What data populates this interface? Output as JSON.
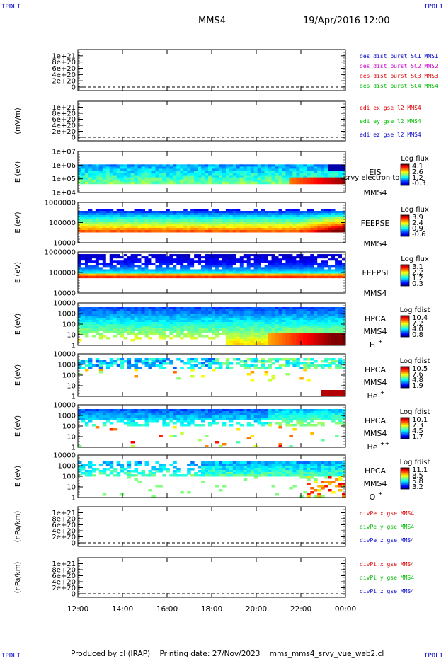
{
  "header": {
    "corner_label": "IPDLI",
    "spacecraft": "MMS4",
    "datetime": "19/Apr/2016 12:00"
  },
  "footer": {
    "produced_by": "Produced by cl (IRAP)",
    "printing_date": "Printing date: 27/Nov/2023",
    "script_name": "mms_mms4_srvy_vue_web2.cl"
  },
  "colors": {
    "mms1": "#0000cc",
    "mms2": "#cc00cc",
    "mms3": "#dd0000",
    "mms4": "#00bb00",
    "x": "#dd0000",
    "y": "#00bb00",
    "z": "#0000cc"
  },
  "chart_data": [
    {
      "type": "line",
      "panel": "des-dist",
      "y_ticks": [
        "1e+21",
        "8e+20",
        "6e+20",
        "4e+20",
        "2e+20",
        "0"
      ],
      "ylim": [
        0,
        1.2e+21
      ],
      "ylabel": "",
      "series": [
        {
          "name": "des dist burst SC1 MMS1",
          "color": "#0000cc"
        },
        {
          "name": "des dist burst SC2 MMS2",
          "color": "#cc00cc"
        },
        {
          "name": "des dist burst SC3 MMS3",
          "color": "#dd0000"
        },
        {
          "name": "des dist burst SC4 MMS4",
          "color": "#00bb00"
        }
      ],
      "zero_line": "dashed"
    },
    {
      "type": "line",
      "panel": "edi-e",
      "y_ticks": [
        "1e+21",
        "8e+20",
        "6e+20",
        "4e+20",
        "2e+20",
        "0"
      ],
      "ylim": [
        0,
        1.2e+21
      ],
      "ylabel": "(mV/m)",
      "series": [
        {
          "name": "edi ex gse l2 MMS4",
          "color": "#dd0000"
        },
        {
          "name": "edi ey gse l2 MMS4",
          "color": "#00bb00"
        },
        {
          "name": "edi ez gse l2 MMS4",
          "color": "#0000cc"
        }
      ],
      "zero_line": "dashed"
    },
    {
      "type": "heatmap",
      "panel": "eis",
      "y_ticks": [
        "1e+07",
        "1e+06",
        "1e+05",
        "1e+04"
      ],
      "ylabel": "E (eV)",
      "instrument": "EIS",
      "overlay_text": "srvy electron to",
      "sc": "MMS4",
      "cbar_title": "Log flux",
      "cbar_ticks": [
        "4.1",
        "2.6",
        "1.2",
        "-0.3"
      ]
    },
    {
      "type": "heatmap",
      "panel": "feeps-e",
      "y_ticks": [
        "1000000",
        "100000",
        "10000"
      ],
      "ylabel": "E (eV)",
      "instrument": "FEEPSE",
      "sc": "MMS4",
      "cbar_title": "Log flux",
      "cbar_ticks": [
        "3.9",
        "2.4",
        "0.9",
        "-0.6"
      ]
    },
    {
      "type": "heatmap",
      "panel": "feeps-i",
      "y_ticks": [
        "1000000",
        "100000",
        "10000"
      ],
      "ylabel": "E (eV)",
      "instrument": "FEEPSI",
      "sc": "MMS4",
      "cbar_title": "Log flux",
      "cbar_ticks": [
        "3.1",
        "2.2",
        "1.2",
        "0.3"
      ]
    },
    {
      "type": "heatmap",
      "panel": "hpca-h",
      "y_ticks": [
        "10000",
        "1000",
        "100",
        "10",
        "1"
      ],
      "ylabel": "E (eV)",
      "instrument": "HPCA",
      "sc": "MMS4",
      "species": "H",
      "species_sup": "+",
      "cbar_title": "Log fdist",
      "cbar_ticks": [
        "10.4",
        "7.2",
        "4.0",
        "0.8"
      ]
    },
    {
      "type": "heatmap",
      "panel": "hpca-he",
      "y_ticks": [
        "10000",
        "1000",
        "100",
        "10",
        "1"
      ],
      "ylabel": "E (eV)",
      "instrument": "HPCA",
      "sc": "MMS4",
      "species": "He",
      "species_sup": "+",
      "cbar_title": "Log fdist",
      "cbar_ticks": [
        "10.5",
        "7.6",
        "4.8",
        "1.9"
      ]
    },
    {
      "type": "heatmap",
      "panel": "hpca-he2",
      "y_ticks": [
        "10000",
        "1000",
        "100",
        "10",
        "1"
      ],
      "ylabel": "E (eV)",
      "instrument": "HPCA",
      "sc": "MMS4",
      "species": "He",
      "species_sup": "++",
      "cbar_title": "Log fdist",
      "cbar_ticks": [
        "10.1",
        "7.3",
        "4.5",
        "1.7"
      ]
    },
    {
      "type": "heatmap",
      "panel": "hpca-o",
      "y_ticks": [
        "10000",
        "1000",
        "100",
        "10",
        "1"
      ],
      "ylabel": "E (eV)",
      "instrument": "HPCA",
      "sc": "MMS4",
      "species": "O",
      "species_sup": "+",
      "cbar_title": "Log fdist",
      "cbar_ticks": [
        "11.1",
        "8.5",
        "5.8",
        "3.2"
      ]
    },
    {
      "type": "line",
      "panel": "divpe",
      "y_ticks": [
        "1e+21",
        "8e+20",
        "6e+20",
        "4e+20",
        "2e+20",
        "0"
      ],
      "ylim": [
        0,
        1.2e+21
      ],
      "ylabel": "(nPa/km)",
      "series": [
        {
          "name": "divPe x gse MMS4",
          "color": "#dd0000"
        },
        {
          "name": "divPe y gse MMS4",
          "color": "#00bb00"
        },
        {
          "name": "divPe z gse MMS4",
          "color": "#0000cc"
        }
      ],
      "zero_line": "dashed"
    },
    {
      "type": "line",
      "panel": "divpi",
      "y_ticks": [
        "1e+21",
        "8e+20",
        "6e+20",
        "4e+20",
        "2e+20",
        "0"
      ],
      "ylim": [
        0,
        1.2e+21
      ],
      "ylabel": "(nPa/km)",
      "series": [
        {
          "name": "divPi x gse MMS4",
          "color": "#dd0000"
        },
        {
          "name": "divPi y gse MMS4",
          "color": "#00bb00"
        },
        {
          "name": "divPi z gse MMS4",
          "color": "#0000cc"
        }
      ],
      "zero_line": "dashed"
    }
  ],
  "x_axis": {
    "ticks": [
      "12:00",
      "14:00",
      "16:00",
      "18:00",
      "20:00",
      "22:00",
      "00:00"
    ]
  }
}
